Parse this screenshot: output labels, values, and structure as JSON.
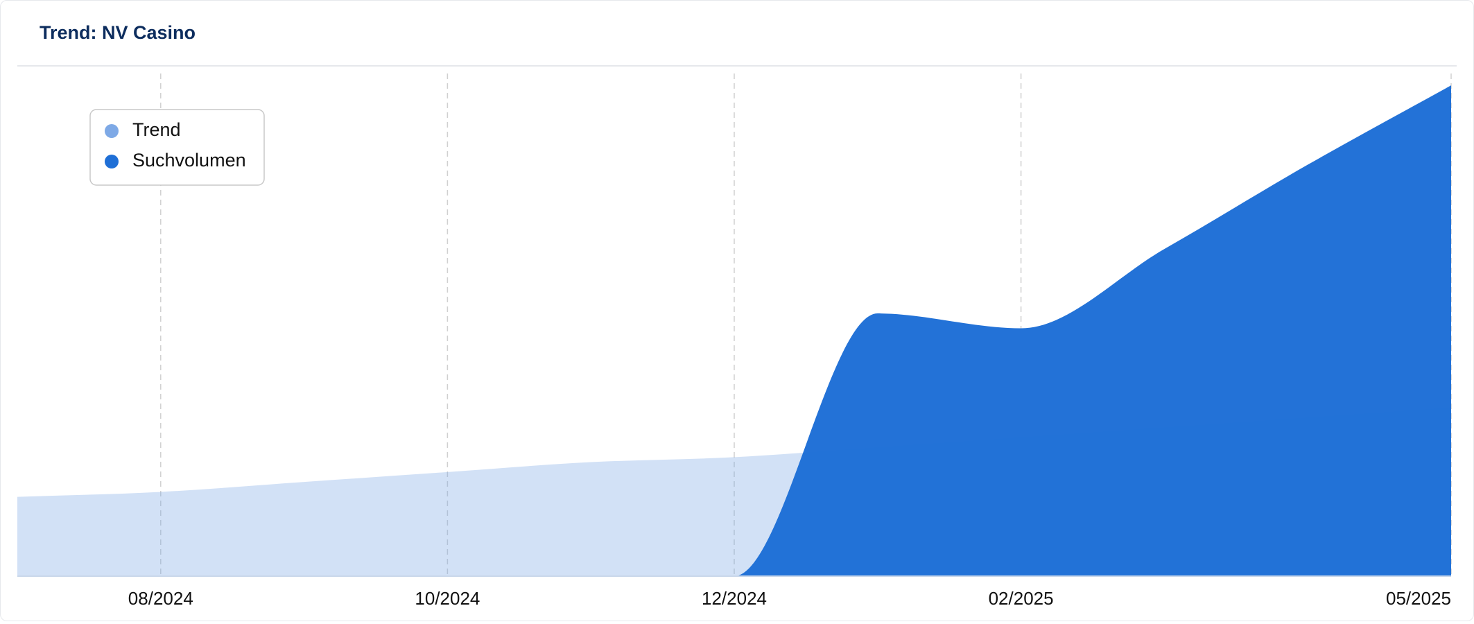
{
  "chart_data": {
    "type": "area",
    "title": "Trend: NV Casino",
    "categories": [
      null,
      "08/2024",
      null,
      "10/2024",
      null,
      "12/2024",
      null,
      "02/2025",
      null,
      null,
      "05/2025"
    ],
    "series": [
      {
        "name": "Trend",
        "color": "#7ea9e6",
        "values": [
          16,
          17,
          19,
          21,
          23,
          24,
          26,
          28,
          30,
          32,
          34
        ]
      },
      {
        "name": "Suchvolumen",
        "color": "#1f6fd6",
        "values": [
          0,
          0,
          0,
          0,
          0,
          0,
          53,
          50,
          66,
          83,
          99
        ]
      }
    ],
    "ylim": [
      0,
      100
    ],
    "legend": "upper left",
    "grid": true
  }
}
